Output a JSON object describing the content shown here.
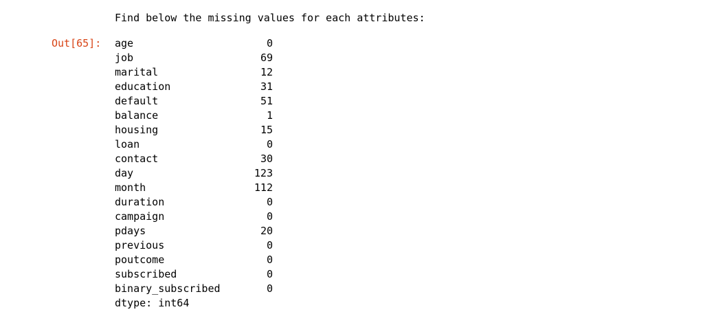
{
  "stdout_text": "Find below the missing values for each attributes:",
  "output_prompt": "Out[65]:",
  "series": [
    {
      "name": "age",
      "value": "0"
    },
    {
      "name": "job",
      "value": "69"
    },
    {
      "name": "marital",
      "value": "12"
    },
    {
      "name": "education",
      "value": "31"
    },
    {
      "name": "default",
      "value": "51"
    },
    {
      "name": "balance",
      "value": "1"
    },
    {
      "name": "housing",
      "value": "15"
    },
    {
      "name": "loan",
      "value": "0"
    },
    {
      "name": "contact",
      "value": "30"
    },
    {
      "name": "day",
      "value": "123"
    },
    {
      "name": "month",
      "value": "112"
    },
    {
      "name": "duration",
      "value": "0"
    },
    {
      "name": "campaign",
      "value": "0"
    },
    {
      "name": "pdays",
      "value": "20"
    },
    {
      "name": "previous",
      "value": "0"
    },
    {
      "name": "poutcome",
      "value": "0"
    },
    {
      "name": "subscribed",
      "value": "0"
    },
    {
      "name": "binary_subscribed",
      "value": "0"
    }
  ],
  "dtype_text": "dtype: int64",
  "colors": {
    "prompt": "#d84315",
    "text": "#000000",
    "background": "#ffffff"
  }
}
